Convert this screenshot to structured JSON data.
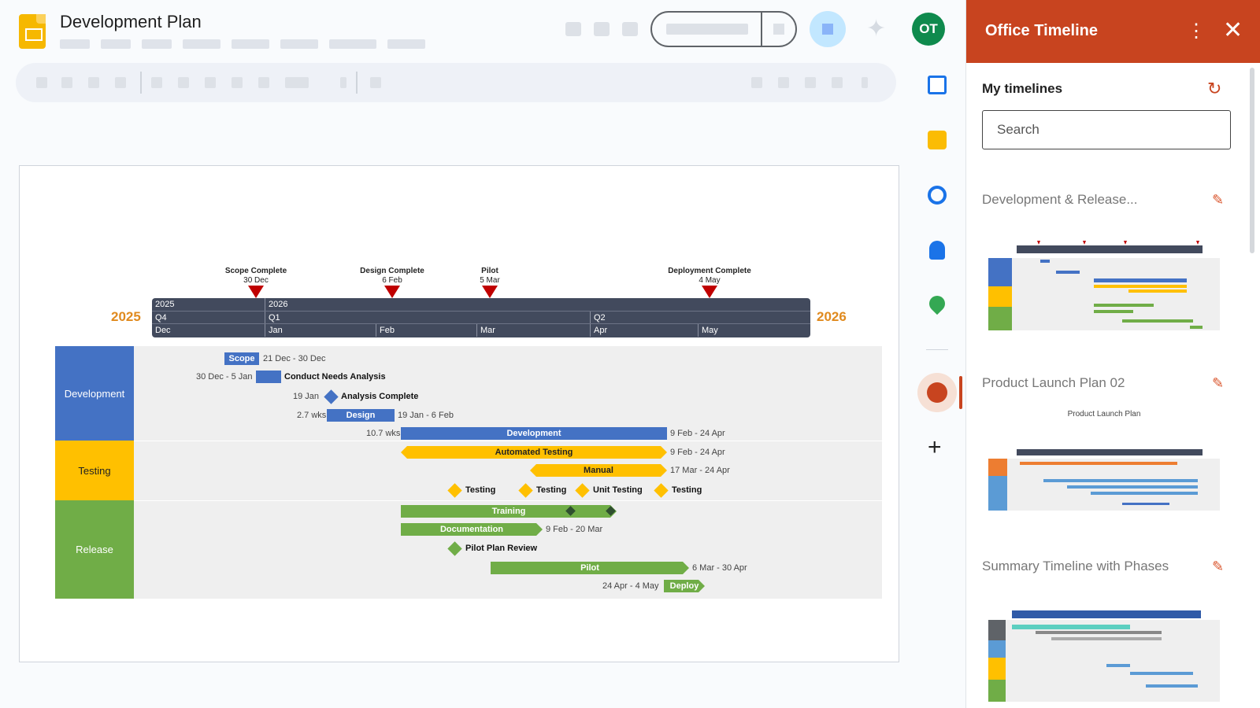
{
  "header": {
    "doc_title": "Development Plan",
    "avatar_initials": "OT",
    "icons": [
      "slides-logo-icon",
      "sparkle-icon",
      "meet-icon"
    ]
  },
  "timeline": {
    "years": {
      "left": "2025",
      "right": "2026"
    },
    "scale_rows": {
      "years": [
        "2025",
        "2026"
      ],
      "quarters": [
        "Q4",
        "Q1",
        "Q2"
      ],
      "months": [
        "Dec",
        "Jan",
        "Feb",
        "Mar",
        "Apr",
        "May"
      ]
    },
    "milestones": [
      {
        "title": "Scope Complete",
        "date": "30 Dec"
      },
      {
        "title": "Design Complete",
        "date": "6 Feb"
      },
      {
        "title": "Pilot",
        "date": "5 Mar"
      },
      {
        "title": "Deployment Complete",
        "date": "4 May"
      }
    ],
    "swimlanes": [
      {
        "name": "Development",
        "color": "#4472c4"
      },
      {
        "name": "Testing",
        "color": "#ffc000"
      },
      {
        "name": "Release",
        "color": "#70ad47"
      }
    ],
    "tasks": {
      "scope": {
        "label": "Scope",
        "dates": "21 Dec - 30 Dec"
      },
      "needs": {
        "label": "Conduct Needs Analysis",
        "dates": "30 Dec - 5 Jan"
      },
      "analysis": {
        "label": "Analysis Complete",
        "dates": "19 Jan"
      },
      "design": {
        "label": "Design",
        "duration": "2.7 wks",
        "dates": "19 Jan - 6 Feb"
      },
      "development": {
        "label": "Development",
        "duration": "10.7 wks",
        "dates": "9 Feb - 24 Apr"
      },
      "auto_testing": {
        "label": "Automated Testing",
        "dates": "9 Feb - 24 Apr"
      },
      "manual": {
        "label": "Manual",
        "dates": "17 Mar - 24 Apr"
      },
      "test_ms": [
        "Testing",
        "Testing",
        "Unit Testing",
        "Testing"
      ],
      "training": {
        "label": "Training"
      },
      "documentation": {
        "label": "Documentation",
        "dates": "9 Feb - 20 Mar"
      },
      "pilot_review": {
        "label": "Pilot Plan Review"
      },
      "pilot": {
        "label": "Pilot",
        "dates": "6 Mar - 30 Apr"
      },
      "deploy": {
        "label": "Deploy",
        "dates": "24 Apr - 4 May"
      }
    }
  },
  "panel": {
    "title": "Office Timeline",
    "subtitle": "My timelines",
    "search_placeholder": "Search",
    "items": [
      {
        "name": "Development & Release..."
      },
      {
        "name": "Product Launch Plan 02",
        "thumb_caption": "Product Launch Plan"
      },
      {
        "name": "Summary Timeline with Phases"
      }
    ]
  }
}
